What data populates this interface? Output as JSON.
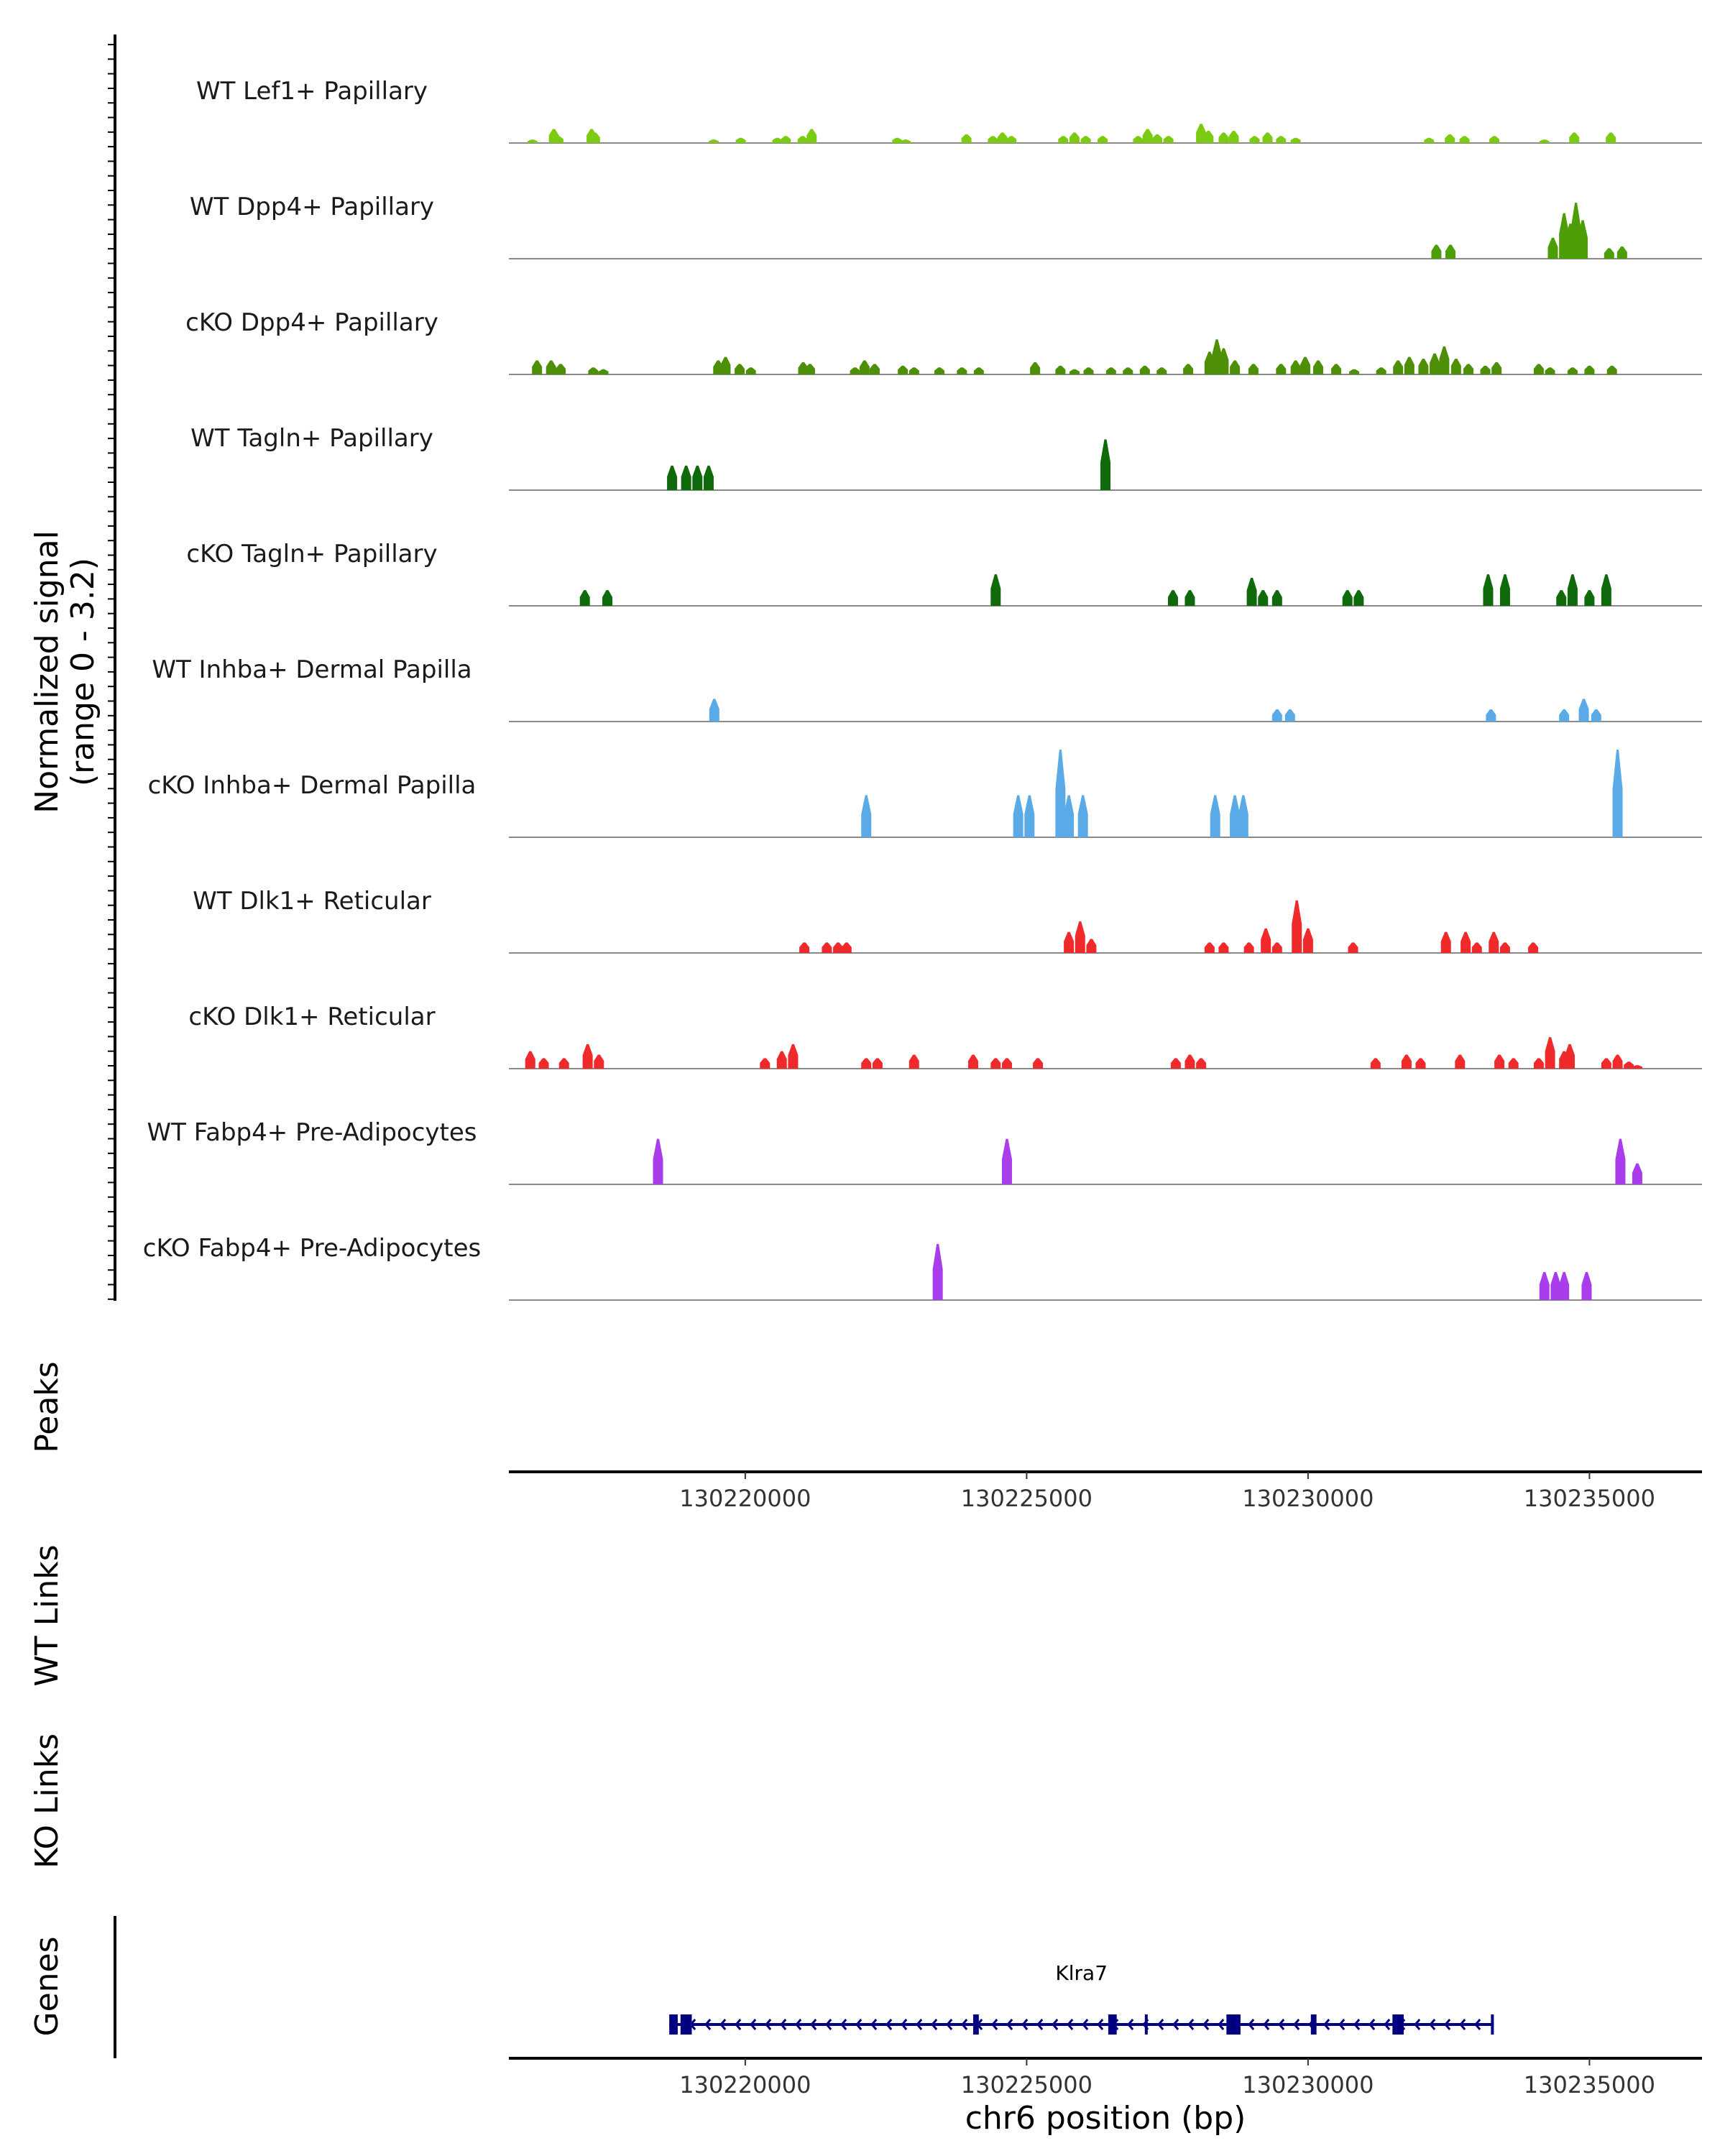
{
  "chart_data": {
    "type": "area",
    "title": "",
    "ylabel": "Normalized signal\n(range 0 - 3.2)",
    "ylim": [
      0,
      3.2
    ],
    "xlabel": "chr6 position (bp)",
    "xlim": [
      130215800,
      130237000
    ],
    "x_ticks": [
      130220000,
      130225000,
      130230000,
      130235000
    ],
    "x_tick_labels": [
      "130220000",
      "130225000",
      "130230000",
      "130235000"
    ],
    "panels": {
      "peaks": "Peaks",
      "wt_links": "WT Links",
      "ko_links": "KO Links",
      "genes": "Genes"
    },
    "tracks": [
      {
        "name": "WT Lef1+ Papillary",
        "color": "#7CCB12",
        "peaks": [
          [
            130216220,
            0.1
          ],
          [
            130216600,
            0.4
          ],
          [
            130216680,
            0.2
          ],
          [
            130217270,
            0.4
          ],
          [
            130217330,
            0.3
          ],
          [
            130219440,
            0.1
          ],
          [
            130219920,
            0.15
          ],
          [
            130220570,
            0.15
          ],
          [
            130220720,
            0.2
          ],
          [
            130221020,
            0.2
          ],
          [
            130221180,
            0.4
          ],
          [
            130222700,
            0.15
          ],
          [
            130222850,
            0.1
          ],
          [
            130223930,
            0.25
          ],
          [
            130224400,
            0.2
          ],
          [
            130224570,
            0.3
          ],
          [
            130224730,
            0.2
          ],
          [
            130225650,
            0.2
          ],
          [
            130225850,
            0.3
          ],
          [
            130226050,
            0.2
          ],
          [
            130226350,
            0.2
          ],
          [
            130226980,
            0.2
          ],
          [
            130227150,
            0.4
          ],
          [
            130227320,
            0.25
          ],
          [
            130227520,
            0.2
          ],
          [
            130228100,
            0.55
          ],
          [
            130228230,
            0.35
          ],
          [
            130228500,
            0.3
          ],
          [
            130228680,
            0.35
          ],
          [
            130229050,
            0.2
          ],
          [
            130229280,
            0.3
          ],
          [
            130229520,
            0.2
          ],
          [
            130229780,
            0.15
          ],
          [
            130232150,
            0.15
          ],
          [
            130232520,
            0.25
          ],
          [
            130232780,
            0.2
          ],
          [
            130233310,
            0.2
          ],
          [
            130234200,
            0.1
          ],
          [
            130234730,
            0.3
          ],
          [
            130235380,
            0.3
          ]
        ]
      },
      {
        "name": "WT Dpp4+ Papillary",
        "color": "#4D9D06",
        "peaks": [
          [
            130232280,
            0.4
          ],
          [
            130232530,
            0.4
          ],
          [
            130234350,
            0.6
          ],
          [
            130234550,
            1.3
          ],
          [
            130234660,
            1.0
          ],
          [
            130234760,
            1.6
          ],
          [
            130234880,
            1.1
          ],
          [
            130235350,
            0.3
          ],
          [
            130235580,
            0.35
          ]
        ]
      },
      {
        "name": "cKO Dpp4+ Papillary",
        "color": "#4D8F06",
        "peaks": [
          [
            130216300,
            0.4
          ],
          [
            130216550,
            0.4
          ],
          [
            130216720,
            0.3
          ],
          [
            130217300,
            0.2
          ],
          [
            130217480,
            0.15
          ],
          [
            130219520,
            0.4
          ],
          [
            130219650,
            0.5
          ],
          [
            130219900,
            0.3
          ],
          [
            130220100,
            0.2
          ],
          [
            130221030,
            0.35
          ],
          [
            130221150,
            0.3
          ],
          [
            130221950,
            0.2
          ],
          [
            130222120,
            0.4
          ],
          [
            130222300,
            0.3
          ],
          [
            130222800,
            0.25
          ],
          [
            130223000,
            0.2
          ],
          [
            130223450,
            0.2
          ],
          [
            130223850,
            0.2
          ],
          [
            130224150,
            0.2
          ],
          [
            130225150,
            0.35
          ],
          [
            130225600,
            0.25
          ],
          [
            130225850,
            0.15
          ],
          [
            130226100,
            0.2
          ],
          [
            130226500,
            0.2
          ],
          [
            130226800,
            0.2
          ],
          [
            130227100,
            0.25
          ],
          [
            130227400,
            0.2
          ],
          [
            130227870,
            0.3
          ],
          [
            130228250,
            0.65
          ],
          [
            130228380,
            1.0
          ],
          [
            130228500,
            0.75
          ],
          [
            130228700,
            0.4
          ],
          [
            130229030,
            0.3
          ],
          [
            130229520,
            0.3
          ],
          [
            130229780,
            0.4
          ],
          [
            130229950,
            0.5
          ],
          [
            130230180,
            0.4
          ],
          [
            130230500,
            0.3
          ],
          [
            130230820,
            0.15
          ],
          [
            130231300,
            0.2
          ],
          [
            130231600,
            0.4
          ],
          [
            130231800,
            0.5
          ],
          [
            130232050,
            0.45
          ],
          [
            130232250,
            0.6
          ],
          [
            130232420,
            0.8
          ],
          [
            130232630,
            0.45
          ],
          [
            130232850,
            0.3
          ],
          [
            130233150,
            0.25
          ],
          [
            130233350,
            0.35
          ],
          [
            130234100,
            0.3
          ],
          [
            130234300,
            0.2
          ],
          [
            130234700,
            0.2
          ],
          [
            130235000,
            0.25
          ],
          [
            130235400,
            0.25
          ]
        ]
      },
      {
        "name": "WT Tagln+ Papillary",
        "color": "#0E6A0A",
        "peaks": [
          [
            130218700,
            0.7
          ],
          [
            130218950,
            0.7
          ],
          [
            130219150,
            0.7
          ],
          [
            130219350,
            0.7
          ],
          [
            130226400,
            1.45
          ]
        ]
      },
      {
        "name": "cKO Tagln+ Papillary",
        "color": "#0E6A0A",
        "peaks": [
          [
            130217150,
            0.45
          ],
          [
            130217550,
            0.45
          ],
          [
            130224450,
            0.9
          ],
          [
            130227600,
            0.45
          ],
          [
            130227900,
            0.45
          ],
          [
            130229000,
            0.8
          ],
          [
            130229200,
            0.45
          ],
          [
            130229450,
            0.45
          ],
          [
            130230700,
            0.45
          ],
          [
            130230900,
            0.45
          ],
          [
            130233200,
            0.9
          ],
          [
            130233500,
            0.9
          ],
          [
            130234500,
            0.45
          ],
          [
            130234700,
            0.9
          ],
          [
            130235000,
            0.45
          ],
          [
            130235300,
            0.9
          ]
        ]
      },
      {
        "name": "WT Inhba+ Dermal Papilla",
        "color": "#5AAAE8",
        "peaks": [
          [
            130219450,
            0.65
          ],
          [
            130229450,
            0.35
          ],
          [
            130229680,
            0.35
          ],
          [
            130233250,
            0.35
          ],
          [
            130234550,
            0.35
          ],
          [
            130234900,
            0.65
          ],
          [
            130235120,
            0.35
          ]
        ]
      },
      {
        "name": "cKO Inhba+ Dermal Papilla",
        "color": "#5AAAE8",
        "peaks": [
          [
            130222150,
            1.2
          ],
          [
            130224850,
            1.2
          ],
          [
            130225050,
            1.2
          ],
          [
            130225600,
            2.5
          ],
          [
            130225750,
            1.2
          ],
          [
            130226000,
            1.2
          ],
          [
            130228350,
            1.2
          ],
          [
            130228700,
            1.2
          ],
          [
            130228850,
            1.2
          ],
          [
            130235500,
            2.5
          ]
        ]
      },
      {
        "name": "WT Dlk1+ Reticular",
        "color": "#F02A2A",
        "peaks": [
          [
            130221050,
            0.3
          ],
          [
            130221450,
            0.3
          ],
          [
            130221650,
            0.3
          ],
          [
            130221800,
            0.3
          ],
          [
            130225750,
            0.6
          ],
          [
            130225950,
            0.9
          ],
          [
            130226150,
            0.4
          ],
          [
            130228250,
            0.3
          ],
          [
            130228500,
            0.3
          ],
          [
            130228950,
            0.3
          ],
          [
            130229250,
            0.7
          ],
          [
            130229450,
            0.3
          ],
          [
            130229800,
            1.5
          ],
          [
            130230000,
            0.7
          ],
          [
            130230800,
            0.3
          ],
          [
            130232450,
            0.6
          ],
          [
            130232800,
            0.6
          ],
          [
            130233000,
            0.3
          ],
          [
            130233300,
            0.6
          ],
          [
            130233500,
            0.3
          ],
          [
            130234000,
            0.3
          ]
        ]
      },
      {
        "name": "cKO Dlk1+ Reticular",
        "color": "#F02A2A",
        "peaks": [
          [
            130216180,
            0.5
          ],
          [
            130216420,
            0.3
          ],
          [
            130216780,
            0.3
          ],
          [
            130217200,
            0.7
          ],
          [
            130217400,
            0.4
          ],
          [
            130220350,
            0.3
          ],
          [
            130220650,
            0.5
          ],
          [
            130220850,
            0.7
          ],
          [
            130222150,
            0.3
          ],
          [
            130222350,
            0.3
          ],
          [
            130223000,
            0.4
          ],
          [
            130224050,
            0.4
          ],
          [
            130224450,
            0.3
          ],
          [
            130224650,
            0.3
          ],
          [
            130225200,
            0.3
          ],
          [
            130227650,
            0.3
          ],
          [
            130227900,
            0.4
          ],
          [
            130228100,
            0.3
          ],
          [
            130231200,
            0.3
          ],
          [
            130231750,
            0.4
          ],
          [
            130232000,
            0.3
          ],
          [
            130232700,
            0.4
          ],
          [
            130233400,
            0.4
          ],
          [
            130233650,
            0.3
          ],
          [
            130234100,
            0.3
          ],
          [
            130234300,
            0.9
          ],
          [
            130234550,
            0.5
          ],
          [
            130234650,
            0.7
          ],
          [
            130235300,
            0.3
          ],
          [
            130235500,
            0.4
          ],
          [
            130235700,
            0.2
          ],
          [
            130235850,
            0.1
          ]
        ]
      },
      {
        "name": "WT Fabp4+ Pre-Adipocytes",
        "color": "#A93CEB",
        "peaks": [
          [
            130218450,
            1.3
          ],
          [
            130224650,
            1.3
          ],
          [
            130235550,
            1.3
          ],
          [
            130235850,
            0.6
          ]
        ]
      },
      {
        "name": "cKO Fabp4+ Pre-Adipocytes",
        "color": "#A93CEB",
        "peaks": [
          [
            130223420,
            1.6
          ],
          [
            130234200,
            0.8
          ],
          [
            130234400,
            0.8
          ],
          [
            130234550,
            0.8
          ],
          [
            130234950,
            0.8
          ]
        ]
      }
    ],
    "genes": [
      {
        "name": "Klra7",
        "start": 130218650,
        "end": 130233300,
        "strand": "-",
        "color": "#000080",
        "exons": [
          [
            130218650,
            130218800
          ],
          [
            130218850,
            130219050
          ],
          [
            130224050,
            130224150
          ],
          [
            130226450,
            130226600
          ],
          [
            130227100,
            130227150
          ],
          [
            130228550,
            130228800
          ],
          [
            130230050,
            130230150
          ],
          [
            130231500,
            130231700
          ],
          [
            130233250,
            130233300
          ]
        ]
      }
    ]
  }
}
